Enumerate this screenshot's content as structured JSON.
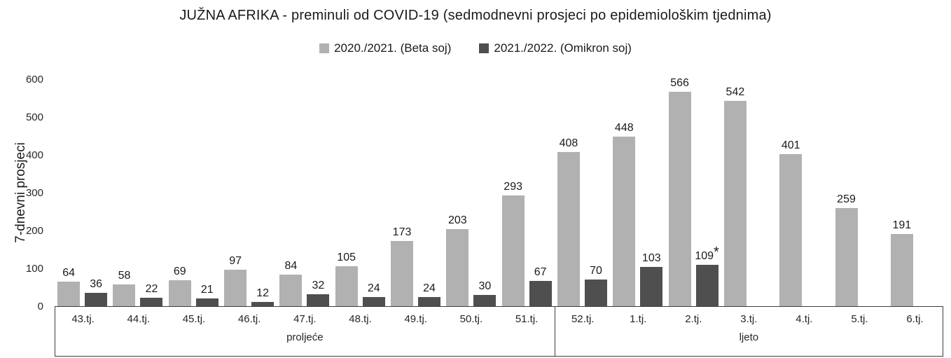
{
  "title": "JUŽNA AFRIKA - preminuli od COVID-19 (sedmodnevni prosjeci po epidemiološkim tjednima)",
  "chart_data": {
    "type": "bar",
    "title": "JUŽNA AFRIKA - preminuli od COVID-19 (sedmodnevni prosjeci po epidemiološkim tjednima)",
    "xlabel": "",
    "ylabel": "7-dnevni prosjeci",
    "ylim": [
      0,
      600
    ],
    "yticks": [
      0,
      100,
      200,
      300,
      400,
      500,
      600
    ],
    "grid": false,
    "legend_position": "top-center",
    "background": "#ffffff",
    "categories": [
      "43.tj.",
      "44.tj.",
      "45.tj.",
      "46.tj.",
      "47.tj.",
      "48.tj.",
      "49.tj.",
      "50.tj.",
      "51.tj.",
      "52.tj.",
      "1.tj.",
      "2.tj.",
      "3.tj.",
      "4.tj.",
      "5.tj.",
      "6.tj."
    ],
    "category_groups": [
      {
        "label": "proljeće",
        "span": 9
      },
      {
        "label": "ljeto",
        "span": 7
      }
    ],
    "series": [
      {
        "name": "2020./2021. (Beta soj)",
        "color": "#b1b1b1",
        "values": [
          64,
          58,
          69,
          97,
          84,
          105,
          173,
          203,
          293,
          408,
          448,
          566,
          542,
          401,
          259,
          191
        ],
        "annotations": {}
      },
      {
        "name": "2021./2022. (Omikron soj)",
        "color": "#4f4f4f",
        "values": [
          36,
          22,
          21,
          12,
          32,
          24,
          24,
          30,
          67,
          70,
          103,
          109,
          null,
          null,
          null,
          null
        ],
        "annotations": {
          "11": "*"
        }
      }
    ]
  }
}
